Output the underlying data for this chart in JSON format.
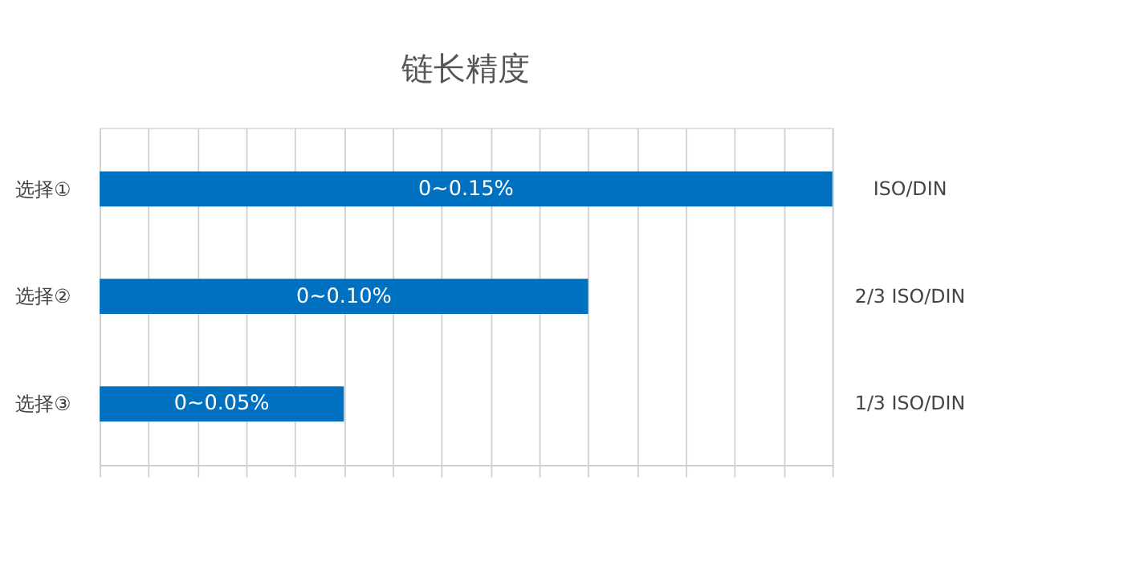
{
  "chart_data": {
    "type": "bar",
    "orientation": "horizontal",
    "title": "链长精度",
    "categories": [
      "选择①",
      "选择②",
      "选择③"
    ],
    "values": [
      0.15,
      0.1,
      0.05
    ],
    "value_labels": [
      "0~0.15%",
      "0~0.10%",
      "0~0.05%"
    ],
    "color": "#0070c0",
    "grid": "x",
    "tick_labels": "y",
    "xlim": [
      0,
      0.15
    ],
    "xticks": [
      {
        "value": 0,
        "label": null
      },
      {
        "value": 0.01,
        "label": null
      },
      {
        "value": 0.02,
        "label": null
      },
      {
        "value": 0.03,
        "label": null
      },
      {
        "value": 0.04,
        "label": null
      },
      {
        "value": 0.05,
        "label": null
      },
      {
        "value": 0.06,
        "label": null
      },
      {
        "value": 0.07,
        "label": null
      },
      {
        "value": 0.08,
        "label": null
      },
      {
        "value": 0.09,
        "label": null
      },
      {
        "value": 0.1,
        "label": null
      },
      {
        "value": 0.11,
        "label": null
      },
      {
        "value": 0.12,
        "label": null
      },
      {
        "value": 0.13,
        "label": null
      },
      {
        "value": 0.14,
        "label": null
      },
      {
        "value": 0.15,
        "label": null
      }
    ],
    "annotations": [
      "ISO/DIN",
      "2/3 ISO/DIN",
      "1/3 ISO/DIN"
    ]
  }
}
